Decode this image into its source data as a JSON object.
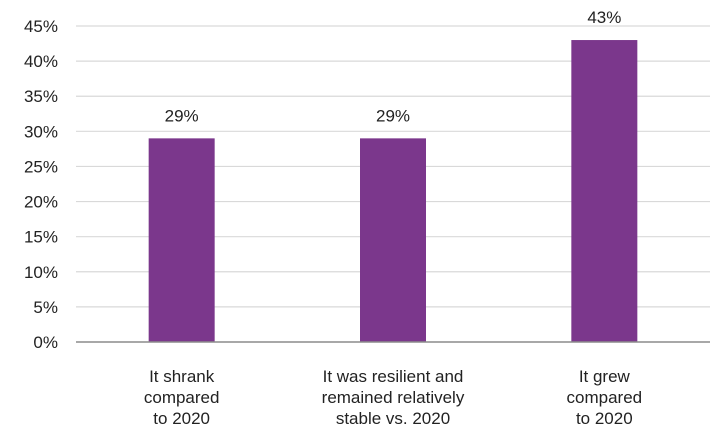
{
  "chart_data": {
    "type": "bar",
    "categories": [
      [
        "It shrank",
        "compared",
        "to 2020"
      ],
      [
        "It was resilient and",
        "remained relatively",
        "stable vs. 2020"
      ],
      [
        "It grew",
        "compared",
        "to 2020"
      ]
    ],
    "values": [
      29,
      29,
      43
    ],
    "data_labels": [
      "29%",
      "29%",
      "43%"
    ],
    "y_ticks": [
      "0%",
      "5%",
      "10%",
      "15%",
      "20%",
      "25%",
      "30%",
      "35%",
      "40%",
      "45%"
    ],
    "ylim": [
      0,
      45
    ],
    "grid": true,
    "legend": "none",
    "colors": {
      "bar": "#7B378C",
      "grid": "#D9D9D9",
      "axis": "#8C8C8C",
      "text": "#222222"
    }
  }
}
